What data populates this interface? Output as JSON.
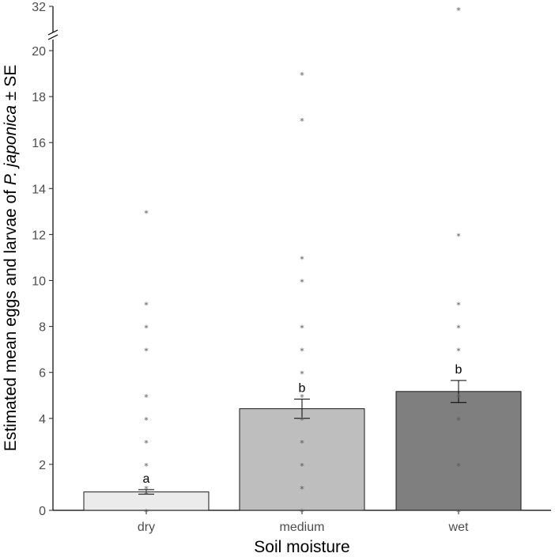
{
  "chart_data": {
    "type": "bar",
    "xlabel": "Soil moisture",
    "ylabel_parts": [
      {
        "text": "Estimated mean eggs and larvae of ",
        "italic": false
      },
      {
        "text": "P. japonica",
        "italic": true
      },
      {
        "text": " ± SE",
        "italic": false
      }
    ],
    "categories": [
      "dry",
      "medium",
      "wet"
    ],
    "values": [
      0.8,
      4.42,
      5.17
    ],
    "se": [
      0.1,
      0.42,
      0.48
    ],
    "significance_letters": [
      "a",
      "b",
      "b"
    ],
    "bar_colors": [
      "#ebebeb",
      "#bebebe",
      "#7f7f7f"
    ],
    "y_ticks": [
      0,
      2,
      4,
      6,
      8,
      10,
      12,
      14,
      16,
      18,
      20
    ],
    "y_break_tick": 32,
    "ylim": [
      0,
      20
    ],
    "y_break": {
      "from": 20,
      "to": 32
    },
    "points": [
      {
        "category": "dry",
        "values": [
          0,
          0.8,
          1,
          2,
          3,
          4,
          5,
          7,
          8,
          9,
          13
        ]
      },
      {
        "category": "medium",
        "values": [
          0,
          1,
          2,
          3,
          4,
          5,
          6,
          7,
          8,
          10,
          11,
          17,
          19
        ]
      },
      {
        "category": "wet",
        "values": [
          0,
          2,
          4,
          5,
          7,
          8,
          9,
          12,
          31
        ]
      }
    ],
    "grid": false
  }
}
